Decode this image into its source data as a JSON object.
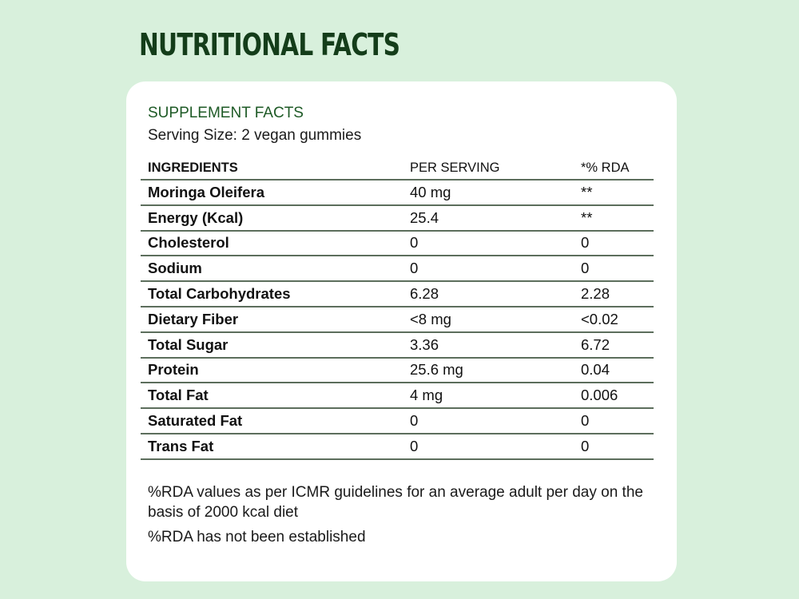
{
  "page": {
    "title": "NUTRITIONAL FACTS",
    "colors": {
      "background": "#d8f0dc",
      "title": "#143d1a",
      "accent": "#1e5a26",
      "card": "#ffffff"
    }
  },
  "card": {
    "subheading": "SUPPLEMENT FACTS",
    "serving_size": "Serving Size: 2 vegan gummies",
    "table": {
      "headers": [
        "INGREDIENTS",
        "PER SERVING",
        "*% RDA"
      ],
      "rows": [
        [
          "Moringa Oleifera",
          "40 mg",
          "**"
        ],
        [
          "Energy (Kcal)",
          "25.4",
          "**"
        ],
        [
          "Cholesterol",
          "0",
          "0"
        ],
        [
          "Sodium",
          "0",
          "0"
        ],
        [
          "Total Carbohydrates",
          "6.28",
          "2.28"
        ],
        [
          "Dietary Fiber",
          "<8 mg",
          "<0.02"
        ],
        [
          "Total Sugar",
          "3.36",
          "6.72"
        ],
        [
          "Protein",
          "25.6 mg",
          "0.04"
        ],
        [
          "Total Fat",
          "4 mg",
          "0.006"
        ],
        [
          "Saturated Fat",
          "0",
          "0"
        ],
        [
          "Trans Fat",
          "0",
          "0"
        ]
      ]
    },
    "notes": [
      "%RDA values as per ICMR guidelines for an average adult per day on the basis of 2000 kcal diet",
      "%RDA has not been established"
    ]
  }
}
